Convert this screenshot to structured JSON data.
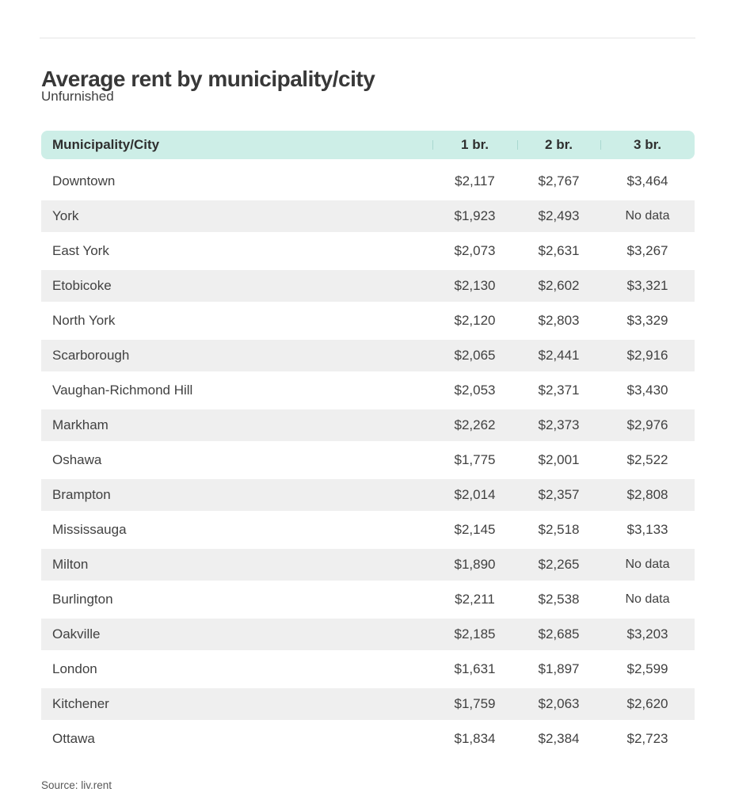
{
  "header": {
    "title": "Average rent by municipality/city",
    "subtitle": "Unfurnished"
  },
  "table": {
    "columns": [
      "Municipality/City",
      "1 br.",
      "2 br.",
      "3 br."
    ],
    "rows": [
      {
        "city": "Downtown",
        "br1": "$2,117",
        "br2": "$2,767",
        "br3": "$3,464"
      },
      {
        "city": "York",
        "br1": "$1,923",
        "br2": "$2,493",
        "br3": "No data"
      },
      {
        "city": "East York",
        "br1": "$2,073",
        "br2": "$2,631",
        "br3": "$3,267"
      },
      {
        "city": "Etobicoke",
        "br1": "$2,130",
        "br2": "$2,602",
        "br3": "$3,321"
      },
      {
        "city": "North York",
        "br1": "$2,120",
        "br2": "$2,803",
        "br3": "$3,329"
      },
      {
        "city": "Scarborough",
        "br1": "$2,065",
        "br2": "$2,441",
        "br3": "$2,916"
      },
      {
        "city": "Vaughan-Richmond Hill",
        "br1": "$2,053",
        "br2": "$2,371",
        "br3": "$3,430"
      },
      {
        "city": "Markham",
        "br1": "$2,262",
        "br2": "$2,373",
        "br3": "$2,976"
      },
      {
        "city": "Oshawa",
        "br1": "$1,775",
        "br2": "$2,001",
        "br3": "$2,522"
      },
      {
        "city": "Brampton",
        "br1": "$2,014",
        "br2": "$2,357",
        "br3": "$2,808"
      },
      {
        "city": "Mississauga",
        "br1": "$2,145",
        "br2": "$2,518",
        "br3": "$3,133"
      },
      {
        "city": "Milton",
        "br1": "$1,890",
        "br2": "$2,265",
        "br3": "No data"
      },
      {
        "city": "Burlington",
        "br1": "$2,211",
        "br2": "$2,538",
        "br3": "No data"
      },
      {
        "city": "Oakville",
        "br1": "$2,185",
        "br2": "$2,685",
        "br3": "$3,203"
      },
      {
        "city": "London",
        "br1": "$1,631",
        "br2": "$1,897",
        "br3": "$2,599"
      },
      {
        "city": "Kitchener",
        "br1": "$1,759",
        "br2": "$2,063",
        "br3": "$2,620"
      },
      {
        "city": "Ottawa",
        "br1": "$1,834",
        "br2": "$2,384",
        "br3": "$2,723"
      }
    ]
  },
  "footer": {
    "source": "Source: liv.rent"
  },
  "colors": {
    "header_bg": "#cdeee7",
    "header_divider": "#a9d8d0",
    "alt_row_bg": "#efefef",
    "title_text": "#383838",
    "body_text": "#414141",
    "rule": "#f1f1f1"
  },
  "chart_data": {
    "type": "table",
    "title": "Average rent by municipality/city",
    "subtitle": "Unfurnished",
    "columns": [
      "Municipality/City",
      "1 br.",
      "2 br.",
      "3 br."
    ],
    "rows": [
      [
        "Downtown",
        2117,
        2767,
        3464
      ],
      [
        "York",
        1923,
        2493,
        null
      ],
      [
        "East York",
        2073,
        2631,
        3267
      ],
      [
        "Etobicoke",
        2130,
        2602,
        3321
      ],
      [
        "North York",
        2120,
        2803,
        3329
      ],
      [
        "Scarborough",
        2065,
        2441,
        2916
      ],
      [
        "Vaughan-Richmond Hill",
        2053,
        2371,
        3430
      ],
      [
        "Markham",
        2262,
        2373,
        2976
      ],
      [
        "Oshawa",
        1775,
        2001,
        2522
      ],
      [
        "Brampton",
        2014,
        2357,
        2808
      ],
      [
        "Mississauga",
        2145,
        2518,
        3133
      ],
      [
        "Milton",
        1890,
        2265,
        null
      ],
      [
        "Burlington",
        2211,
        2538,
        null
      ],
      [
        "Oakville",
        2185,
        2685,
        3203
      ],
      [
        "London",
        1631,
        1897,
        2599
      ],
      [
        "Kitchener",
        1759,
        2063,
        2620
      ],
      [
        "Ottawa",
        1834,
        2384,
        2723
      ]
    ],
    "no_data_label": "No data",
    "source": "Source: liv.rent",
    "layout": {
      "alternating_row_shading": true,
      "value_alignment": "center"
    }
  }
}
